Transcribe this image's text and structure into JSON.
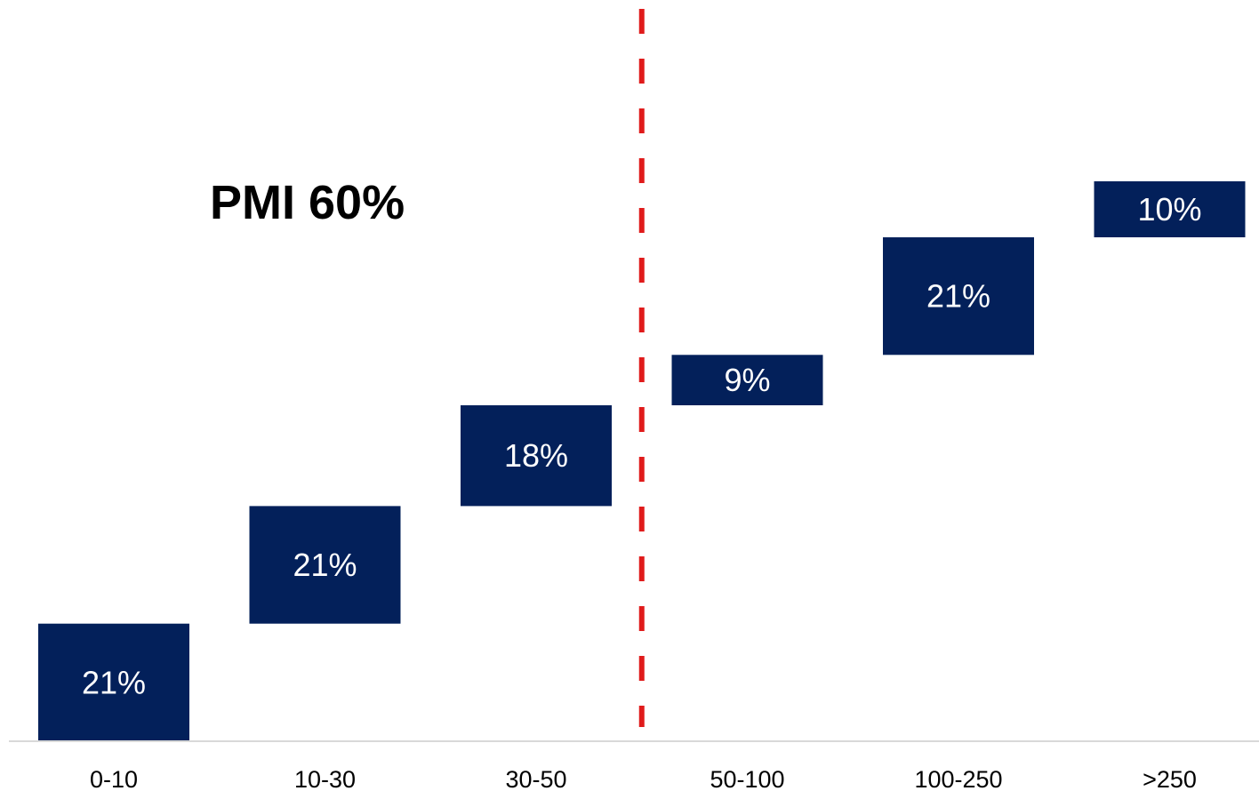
{
  "chart_data": {
    "type": "bar",
    "subtype": "waterfall",
    "categories": [
      "0-10",
      "10-30",
      "30-50",
      "50-100",
      "100-250",
      ">250"
    ],
    "values": [
      21,
      21,
      18,
      9,
      21,
      10
    ],
    "value_labels": [
      "21%",
      "21%",
      "18%",
      "9%",
      "21%",
      "10%"
    ],
    "ylim": [
      0,
      100
    ],
    "grid": false,
    "annotation": "PMI 60%",
    "divider_after_category": "30-50",
    "colors": {
      "bar": "#03205a",
      "bar_label": "#ffffff",
      "divider": "#e01b1b",
      "axis": "#d9d9d9"
    }
  }
}
